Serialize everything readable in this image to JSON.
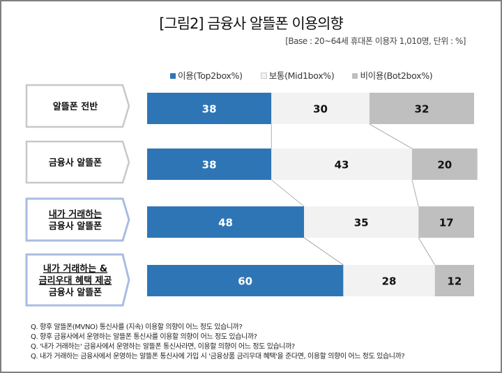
{
  "title": "[그림2] 금융사 알뜰폰 이용의향",
  "base_note": "[Base : 20~64세 휴대폰 이용자 1,010명, 단위 : %]",
  "colors": {
    "top2": "#2E75B6",
    "mid1": "#F2F2F2",
    "bot2": "#BFBFBF"
  },
  "chart_data": {
    "type": "bar",
    "orientation": "horizontal-stacked-100",
    "categories": [
      {
        "lines": [
          "알뜰폰 전반"
        ],
        "underlined_lines": 0,
        "border": "gray"
      },
      {
        "lines": [
          "금융사 알뜰폰"
        ],
        "underlined_lines": 0,
        "border": "gray"
      },
      {
        "lines": [
          "내가 거래하는",
          "금융사 알뜰폰"
        ],
        "underlined_lines": 1,
        "border": "blue"
      },
      {
        "lines": [
          "내가 거래하는 &",
          "금리우대 혜택 제공",
          "금융사 알뜰폰"
        ],
        "underlined_lines": 2,
        "border": "blue"
      }
    ],
    "series": [
      {
        "name": "이용(Top2box%)",
        "values": [
          38,
          38,
          48,
          60
        ]
      },
      {
        "name": "보통(Mid1box%)",
        "values": [
          30,
          43,
          35,
          28
        ]
      },
      {
        "name": "비이용(Bot2box%)",
        "values": [
          32,
          20,
          17,
          12
        ]
      }
    ],
    "xlim": [
      0,
      100
    ],
    "legend": "top",
    "connector_lines": true
  },
  "questions": [
    "Q. 향후 알뜰폰(MVNO) 통신사를 (지속) 이용할 의향이 어느 정도 있습니까?",
    "Q. 향후 금융사에서 운영하는 알뜰폰 통신사를 이용할 의향이 어느 정도 있습니까?",
    "Q. '내가 거래하는' 금융사에서 운영하는 알뜰폰 통신사라면, 이용할 의향이 어느 정도 있습니까?",
    "Q. 내가 거래하는 금융사에서 운영하는 알뜰폰 통신사에 가입 시 '금융상품 금리우대 혜택'을 준다면, 이용할 의향이 어느 정도 있습니까?"
  ]
}
